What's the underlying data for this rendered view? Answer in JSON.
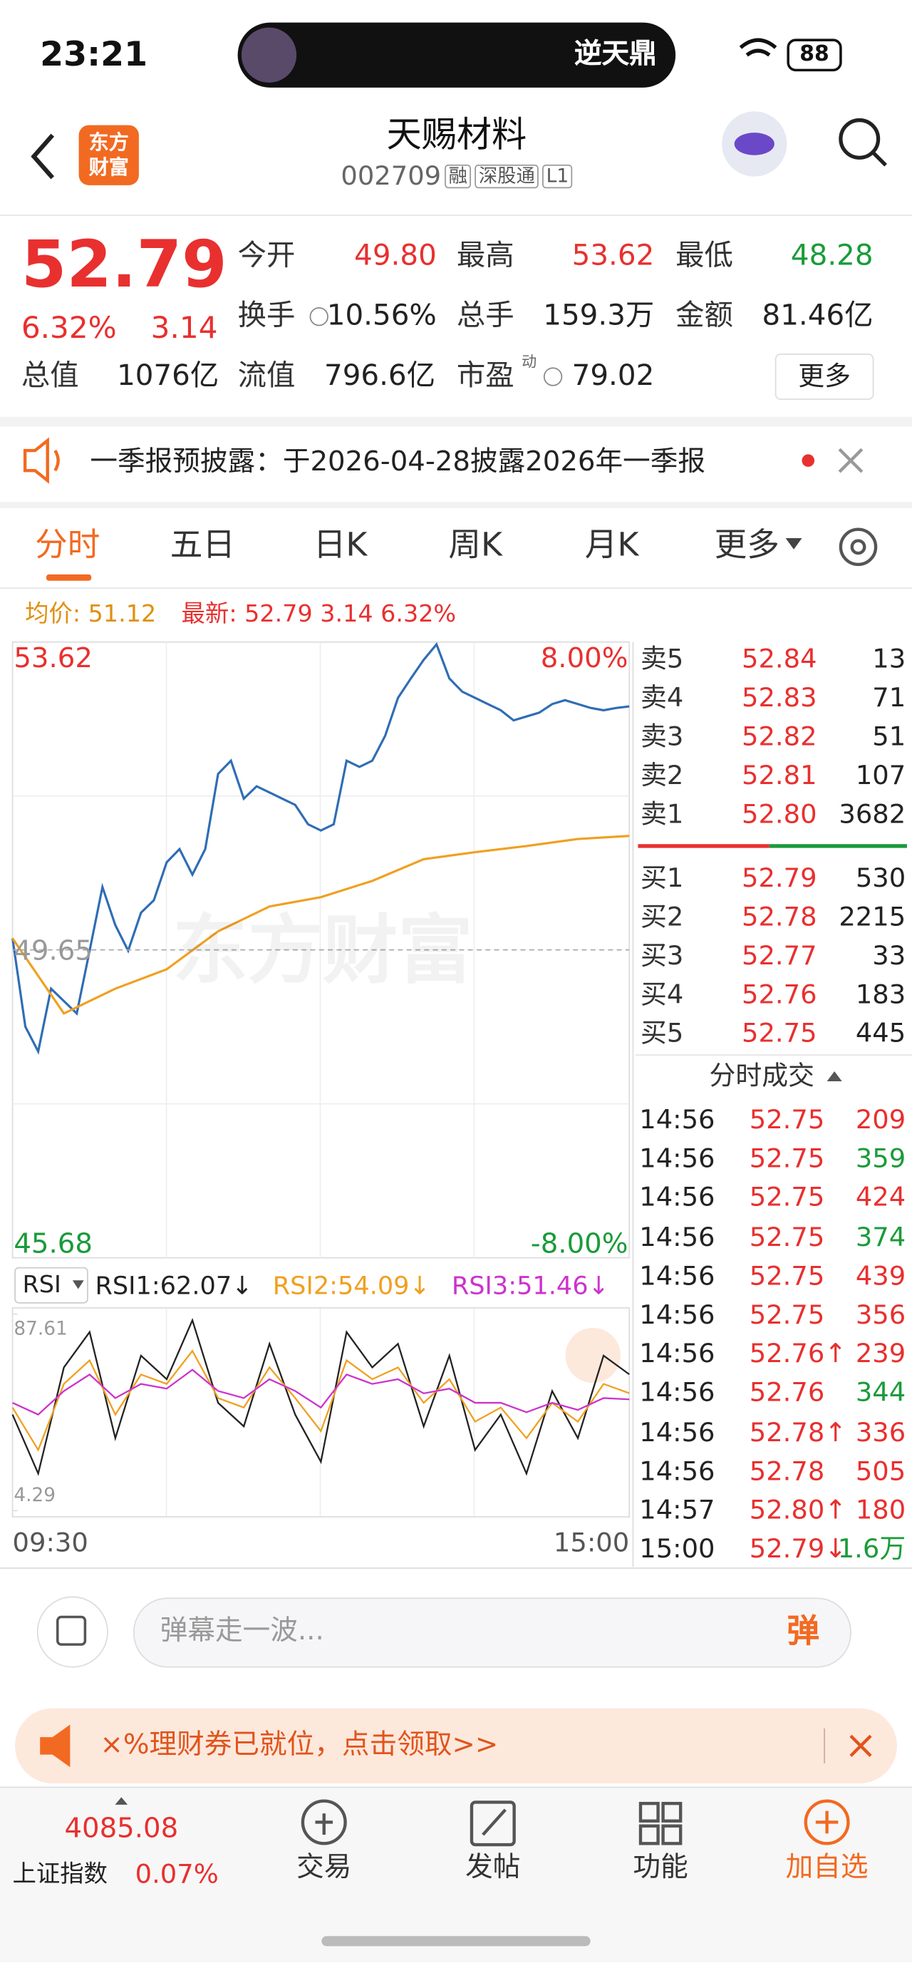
{
  "status_bar": {
    "time": "23:21",
    "banner": "逆天鼎",
    "battery": "88"
  },
  "header": {
    "logo": [
      "东方",
      "财富"
    ],
    "title": "天赐材料",
    "code": "002709",
    "tags": [
      "融",
      "深股通",
      "L1"
    ]
  },
  "quote": {
    "price": "52.79",
    "change_pct": "6.32%",
    "change": "3.14",
    "fields": [
      {
        "label": "今开",
        "value": "49.80"
      },
      {
        "label": "最高",
        "value": "53.62"
      },
      {
        "label": "最低",
        "value": "48.28"
      },
      {
        "label": "换手",
        "value": "10.56%"
      },
      {
        "label": "总手",
        "value": "159.3万"
      },
      {
        "label": "金额",
        "value": "81.46亿"
      },
      {
        "label": "总值",
        "value": "1076亿"
      },
      {
        "label": "流值",
        "value": "796.6亿"
      },
      {
        "label": "市盈",
        "sup": "动",
        "value": "79.02"
      }
    ],
    "more": "更多"
  },
  "notice": {
    "text": "一季报预披露：于2026-04-28披露2026年一季报"
  },
  "tabs": [
    "分时",
    "五日",
    "日K",
    "周K",
    "月K",
    "更多"
  ],
  "info_line": {
    "avg": "均价: 51.12",
    "latest": "最新: 52.79 3.14 6.32%"
  },
  "watermark": "东方财富",
  "indicator": "RSI",
  "chart_data": [
    {
      "type": "line",
      "xlim": [
        0,
        240
      ],
      "ylim": [
        45.68,
        53.62
      ],
      "yticks": [
        53.62,
        49.65,
        45.68
      ],
      "y2lim": [
        -8,
        8
      ],
      "y2ticks": [
        {
          "value": 8,
          "label": "8.00%"
        },
        {
          "value": -8,
          "label": "-8.00%"
        }
      ],
      "series": [
        {
          "color": "#2f6db5",
          "x": [
            0,
            5,
            10,
            15,
            20,
            25,
            30,
            35,
            40,
            45,
            50,
            55,
            60,
            65,
            70,
            75,
            80,
            85,
            90,
            95,
            100,
            105,
            110,
            115,
            120,
            125,
            130,
            135,
            140,
            145,
            150,
            155,
            160,
            165,
            170,
            175,
            180,
            185,
            190,
            195,
            200,
            205,
            210,
            215,
            220,
            225,
            230,
            235,
            240
          ],
          "values": [
            49.8,
            48.66,
            48.34,
            49.15,
            48.99,
            48.83,
            49.64,
            50.46,
            49.97,
            49.64,
            50.13,
            50.29,
            50.78,
            50.95,
            50.62,
            50.95,
            51.92,
            52.09,
            51.6,
            51.76,
            51.68,
            51.6,
            51.52,
            51.27,
            51.19,
            51.27,
            52.09,
            52.01,
            52.09,
            52.41,
            52.9,
            53.15,
            53.39,
            53.59,
            53.15,
            52.98,
            52.9,
            52.82,
            52.74,
            52.61,
            52.66,
            52.71,
            52.82,
            52.87,
            52.82,
            52.77,
            52.74,
            52.77,
            52.79
          ]
        },
        {
          "color": "#f0a020",
          "x": [
            0,
            20,
            40,
            60,
            80,
            100,
            120,
            140,
            160,
            180,
            200,
            220,
            240
          ],
          "values": [
            49.8,
            48.83,
            49.15,
            49.4,
            49.89,
            50.21,
            50.33,
            50.54,
            50.82,
            50.91,
            50.99,
            51.08,
            51.12
          ]
        }
      ]
    },
    {
      "type": "line",
      "xlim": [
        0,
        240
      ],
      "ylim": [
        4.29,
        87.61
      ],
      "yticks": [
        87.61,
        4.29
      ],
      "xticks": [
        {
          "value": 0,
          "label": "09:30"
        },
        {
          "value": 240,
          "label": "15:00"
        }
      ],
      "x": [
        0,
        10,
        20,
        30,
        40,
        50,
        60,
        70,
        80,
        90,
        100,
        110,
        120,
        130,
        140,
        150,
        160,
        170,
        180,
        190,
        200,
        210,
        220,
        230,
        240
      ],
      "series": [
        {
          "name": "RSI1:62.07↓",
          "color": "#222222",
          "values": [
            45,
            20,
            65,
            80,
            35,
            70,
            60,
            85,
            50,
            40,
            75,
            45,
            25,
            80,
            65,
            75,
            40,
            70,
            30,
            45,
            20,
            55,
            35,
            70,
            62.07
          ]
        },
        {
          "name": "RSI2:54.09↓",
          "color": "#f0a020",
          "values": [
            48,
            30,
            58,
            68,
            45,
            62,
            58,
            72,
            52,
            48,
            65,
            52,
            38,
            68,
            60,
            65,
            50,
            60,
            42,
            48,
            35,
            50,
            42,
            58,
            54.09
          ]
        },
        {
          "name": "RSI3:51.46↓",
          "color": "#cc33cc",
          "values": [
            50,
            45,
            55,
            62,
            52,
            58,
            56,
            64,
            55,
            52,
            60,
            55,
            48,
            62,
            58,
            60,
            54,
            56,
            50,
            50,
            46,
            50,
            47,
            52,
            51.46
          ]
        }
      ]
    }
  ],
  "order_book": {
    "asks": [
      {
        "label": "卖5",
        "price": "52.84",
        "volume": "13"
      },
      {
        "label": "卖4",
        "price": "52.83",
        "volume": "71"
      },
      {
        "label": "卖3",
        "price": "52.82",
        "volume": "51"
      },
      {
        "label": "卖2",
        "price": "52.81",
        "volume": "107"
      },
      {
        "label": "卖1",
        "price": "52.80",
        "volume": "3682"
      }
    ],
    "bids": [
      {
        "label": "买1",
        "price": "52.79",
        "volume": "530"
      },
      {
        "label": "买2",
        "price": "52.78",
        "volume": "2215"
      },
      {
        "label": "买3",
        "price": "52.77",
        "volume": "33"
      },
      {
        "label": "买4",
        "price": "52.76",
        "volume": "183"
      },
      {
        "label": "买5",
        "price": "52.75",
        "volume": "445"
      }
    ]
  },
  "trades": {
    "title": "分时成交",
    "rows": [
      {
        "time": "14:56",
        "price": "52.75",
        "volume": "209",
        "color": "#e8302f"
      },
      {
        "time": "14:56",
        "price": "52.75",
        "volume": "359",
        "color": "#1a9b3a"
      },
      {
        "time": "14:56",
        "price": "52.75",
        "volume": "424",
        "color": "#e8302f"
      },
      {
        "time": "14:56",
        "price": "52.75",
        "volume": "374",
        "color": "#1a9b3a"
      },
      {
        "time": "14:56",
        "price": "52.75",
        "volume": "439",
        "color": "#e8302f"
      },
      {
        "time": "14:56",
        "price": "52.75",
        "volume": "356",
        "color": "#e8302f"
      },
      {
        "time": "14:56",
        "price": "52.76↑",
        "volume": "239",
        "color": "#e8302f"
      },
      {
        "time": "14:56",
        "price": "52.76",
        "volume": "344",
        "color": "#1a9b3a"
      },
      {
        "time": "14:56",
        "price": "52.78↑",
        "volume": "336",
        "color": "#e8302f"
      },
      {
        "time": "14:56",
        "price": "52.78",
        "volume": "505",
        "color": "#e8302f"
      },
      {
        "time": "14:57",
        "price": "52.80↑",
        "volume": "180",
        "color": "#e8302f"
      },
      {
        "time": "15:00",
        "price": "52.79↓",
        "volume": "1.6万",
        "color": "#1a9b3a"
      }
    ]
  },
  "comment": {
    "placeholder": "弹幕走一波...",
    "button": "弹"
  },
  "promo": {
    "text": "×%理财券已就位，点击领取>>"
  },
  "bottom_nav": {
    "index": {
      "value": "4085.08",
      "name": "上证指数",
      "change": "0.07%"
    },
    "items": [
      "交易",
      "发帖",
      "功能",
      "加自选"
    ]
  }
}
